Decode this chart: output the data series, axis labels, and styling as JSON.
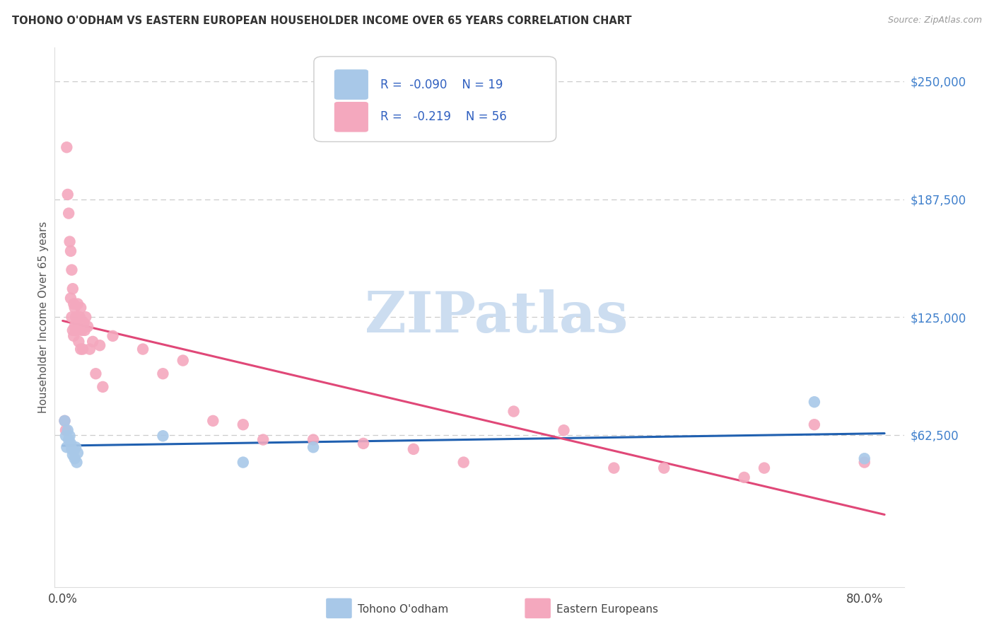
{
  "title": "TOHONO O'ODHAM VS EASTERN EUROPEAN HOUSEHOLDER INCOME OVER 65 YEARS CORRELATION CHART",
  "source": "Source: ZipAtlas.com",
  "ylabel": "Householder Income Over 65 years",
  "ytick_values": [
    62500,
    125000,
    187500,
    250000
  ],
  "ylim": [
    -18000,
    268000
  ],
  "xlim": [
    -0.008,
    0.84
  ],
  "legend_blue_r": "-0.090",
  "legend_blue_n": "19",
  "legend_pink_r": "-0.219",
  "legend_pink_n": "56",
  "blue_color": "#a8c8e8",
  "pink_color": "#f4a8be",
  "blue_line_color": "#2060b0",
  "pink_line_color": "#e04878",
  "legend_text_color": "#3060c0",
  "watermark_color": "#ccddf0",
  "background_color": "#ffffff",
  "grid_color": "#cccccc",
  "blue_points_x": [
    0.002,
    0.003,
    0.004,
    0.005,
    0.006,
    0.007,
    0.008,
    0.009,
    0.01,
    0.011,
    0.012,
    0.013,
    0.014,
    0.015,
    0.1,
    0.18,
    0.25,
    0.75,
    0.8
  ],
  "blue_points_y": [
    70000,
    62000,
    56000,
    65000,
    60000,
    62000,
    58000,
    55000,
    52000,
    54000,
    50000,
    56000,
    48000,
    53000,
    62000,
    48000,
    56000,
    80000,
    50000
  ],
  "pink_points_x": [
    0.002,
    0.003,
    0.004,
    0.005,
    0.006,
    0.007,
    0.008,
    0.008,
    0.009,
    0.009,
    0.01,
    0.01,
    0.011,
    0.011,
    0.012,
    0.012,
    0.013,
    0.013,
    0.014,
    0.015,
    0.015,
    0.016,
    0.016,
    0.017,
    0.018,
    0.018,
    0.019,
    0.02,
    0.021,
    0.022,
    0.023,
    0.025,
    0.027,
    0.03,
    0.033,
    0.037,
    0.04,
    0.05,
    0.08,
    0.1,
    0.12,
    0.15,
    0.18,
    0.2,
    0.25,
    0.3,
    0.35,
    0.4,
    0.45,
    0.5,
    0.55,
    0.6,
    0.68,
    0.7,
    0.75,
    0.8
  ],
  "pink_points_y": [
    70000,
    65000,
    215000,
    190000,
    180000,
    165000,
    160000,
    135000,
    150000,
    125000,
    140000,
    118000,
    132000,
    115000,
    130000,
    120000,
    125000,
    118000,
    122000,
    132000,
    118000,
    120000,
    112000,
    125000,
    130000,
    108000,
    118000,
    108000,
    122000,
    118000,
    125000,
    120000,
    108000,
    112000,
    95000,
    110000,
    88000,
    115000,
    108000,
    95000,
    102000,
    70000,
    68000,
    60000,
    60000,
    58000,
    55000,
    48000,
    75000,
    65000,
    45000,
    45000,
    40000,
    45000,
    68000,
    48000
  ]
}
